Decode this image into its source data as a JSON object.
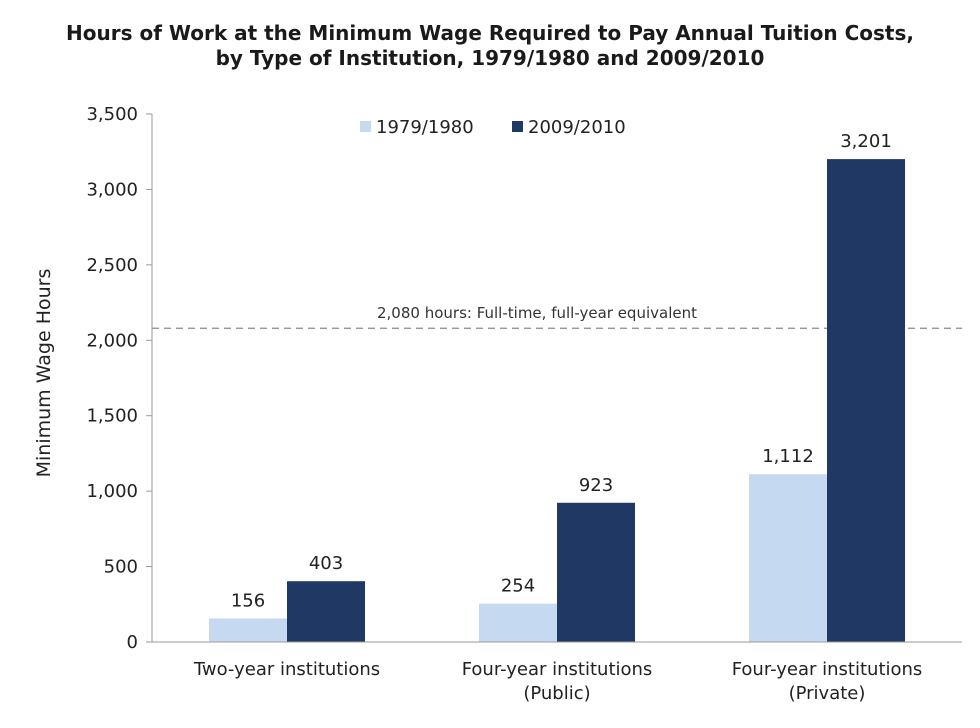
{
  "chart_data": {
    "type": "bar",
    "title_lines": [
      "Hours of Work at the Minimum Wage Required to Pay Annual Tuition Costs,",
      "by Type of Institution, 1979/1980 and 2009/2010"
    ],
    "ylabel": "Minimum Wage Hours",
    "xlabel": "",
    "ylim": [
      0,
      3500
    ],
    "yticks": [
      0,
      500,
      1000,
      1500,
      2000,
      2500,
      3000,
      3500
    ],
    "ytick_labels": [
      "0",
      "500",
      "1,000",
      "1,500",
      "2,000",
      "2,500",
      "3,000",
      "3,500"
    ],
    "categories": [
      [
        "Two-year institutions"
      ],
      [
        "Four-year institutions",
        "(Public)"
      ],
      [
        "Four-year institutions",
        "(Private)"
      ]
    ],
    "series": [
      {
        "name": "1979/1980",
        "color": "#c5d9f1",
        "values": [
          156,
          254,
          1112
        ],
        "labels": [
          "156",
          "254",
          "1,112"
        ]
      },
      {
        "name": "2009/2010",
        "color": "#1f3864",
        "values": [
          403,
          923,
          3201
        ],
        "labels": [
          "403",
          "923",
          "3,201"
        ]
      }
    ],
    "reference_line": {
      "value": 2080,
      "label": "2,080 hours: Full-time, full-year equivalent",
      "style": "dashed"
    },
    "legend_position": "top-center",
    "grid": false
  }
}
